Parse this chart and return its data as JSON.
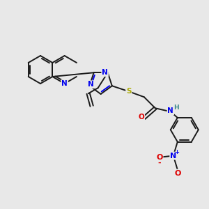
{
  "bg_color": "#e8e8e8",
  "atom_colors": {
    "C": "#1a1a1a",
    "N": "#0000ee",
    "O": "#dd0000",
    "S": "#aaaa00",
    "H": "#3a8a8a"
  },
  "bond_color": "#1a1a1a",
  "lw": 1.4,
  "fs": 7.5
}
